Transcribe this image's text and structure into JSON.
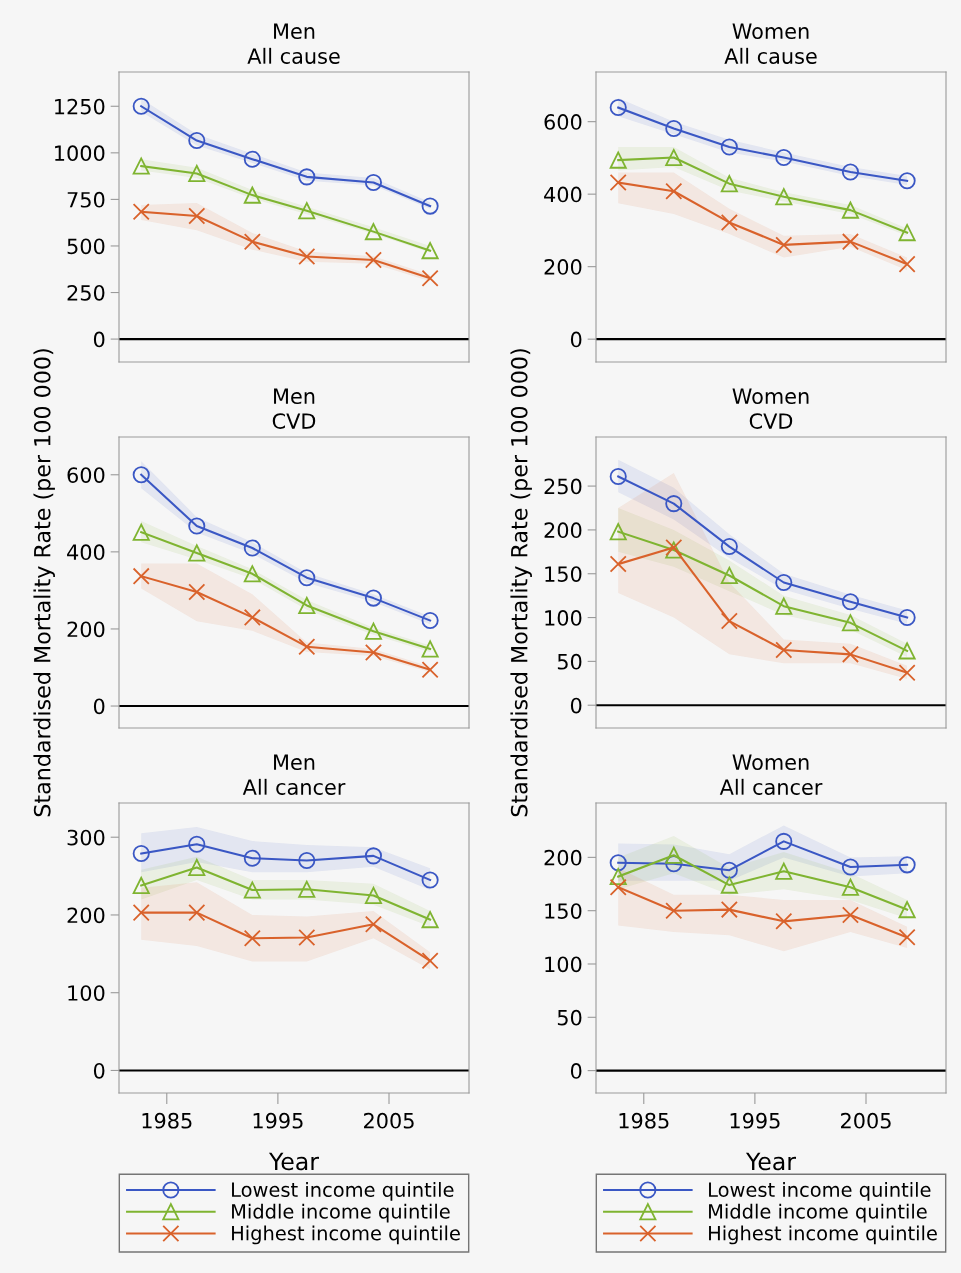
{
  "chart_data": [
    {
      "type": "line",
      "title": "Men\nAll cause",
      "x": [
        1982.7,
        1987.7,
        1992.7,
        1997.6,
        2003.6,
        2008.7
      ],
      "xlim": [
        1980.7,
        2012.2
      ],
      "ylim": [
        -123,
        1434
      ],
      "yticks": [
        0,
        250,
        500,
        750,
        1000,
        1250
      ],
      "tick_labels": "y",
      "grid": false,
      "legend": false,
      "ref_lines": [
        {
          "axis": "y",
          "value": 0,
          "color": "#000000"
        }
      ],
      "series": [
        {
          "color": "#3a57c4",
          "marker": "circle",
          "values": [
            1250,
            1066,
            966,
            871,
            841,
            714
          ],
          "upper": [
            1290,
            1100,
            995,
            895,
            865,
            735
          ],
          "lower": [
            1220,
            1040,
            945,
            850,
            825,
            700
          ]
        },
        {
          "color": "#7fb431",
          "marker": "triangle",
          "values": [
            929,
            889,
            773,
            689,
            577,
            475
          ],
          "upper": [
            965,
            920,
            800,
            710,
            600,
            500
          ],
          "lower": [
            905,
            865,
            755,
            670,
            565,
            465
          ]
        },
        {
          "color": "#d9622b",
          "marker": "cross",
          "values": [
            684,
            661,
            523,
            443,
            425,
            327
          ],
          "upper": [
            720,
            730,
            570,
            470,
            445,
            345
          ],
          "lower": [
            640,
            585,
            480,
            415,
            405,
            310
          ]
        }
      ]
    },
    {
      "type": "line",
      "title": "Women\nAll cause",
      "x": [
        1982.7,
        1987.7,
        1992.7,
        1997.6,
        2003.6,
        2008.7
      ],
      "xlim": [
        1980.7,
        2012.2
      ],
      "ylim": [
        -63,
        737
      ],
      "yticks": [
        0,
        200,
        400,
        600
      ],
      "tick_labels": "y",
      "grid": false,
      "legend": false,
      "ref_lines": [
        {
          "axis": "y",
          "value": 0,
          "color": "#000000"
        }
      ],
      "series": [
        {
          "color": "#3a57c4",
          "marker": "circle",
          "values": [
            639,
            581,
            530,
            501,
            461,
            437
          ],
          "upper": [
            665,
            600,
            550,
            515,
            475,
            450
          ],
          "lower": [
            615,
            565,
            515,
            490,
            450,
            425
          ]
        },
        {
          "color": "#7fb431",
          "marker": "triangle",
          "values": [
            494,
            501,
            429,
            393,
            356,
            294
          ],
          "upper": [
            530,
            530,
            445,
            405,
            370,
            305
          ],
          "lower": [
            465,
            475,
            410,
            380,
            345,
            285
          ]
        },
        {
          "color": "#d9622b",
          "marker": "cross",
          "values": [
            432,
            408,
            322,
            260,
            269,
            207
          ],
          "upper": [
            460,
            460,
            360,
            285,
            290,
            225
          ],
          "lower": [
            375,
            345,
            290,
            225,
            255,
            190
          ]
        }
      ]
    },
    {
      "type": "line",
      "title": "Men\nCVD",
      "ylabel": "Standardised Mortality Rate (per 100 000)",
      "x": [
        1982.7,
        1987.7,
        1992.7,
        1997.6,
        2003.6,
        2008.7
      ],
      "xlim": [
        1980.7,
        2012.2
      ],
      "ylim": [
        -57,
        698
      ],
      "yticks": [
        0,
        200,
        400,
        600
      ],
      "tick_labels": "y",
      "grid": false,
      "legend": false,
      "ref_lines": [
        {
          "axis": "y",
          "value": 0,
          "color": "#000000"
        }
      ],
      "series": [
        {
          "color": "#3a57c4",
          "marker": "circle",
          "values": [
            600,
            467,
            410,
            333,
            280,
            222
          ],
          "upper": [
            635,
            490,
            425,
            345,
            290,
            232
          ],
          "lower": [
            565,
            450,
            395,
            320,
            270,
            212
          ]
        },
        {
          "color": "#7fb431",
          "marker": "triangle",
          "values": [
            451,
            397,
            343,
            261,
            194,
            148
          ],
          "upper": [
            480,
            415,
            355,
            275,
            203,
            157
          ],
          "lower": [
            425,
            380,
            330,
            250,
            185,
            140
          ]
        },
        {
          "color": "#d9622b",
          "marker": "cross",
          "values": [
            337,
            296,
            230,
            154,
            139,
            94
          ],
          "upper": [
            370,
            370,
            290,
            165,
            148,
            102
          ],
          "lower": [
            305,
            220,
            195,
            140,
            130,
            88
          ]
        }
      ]
    },
    {
      "type": "line",
      "title": "Women\nCVD",
      "ylabel": "Standardised Mortality Rate (per 100 000)",
      "x": [
        1982.7,
        1987.7,
        1992.7,
        1997.6,
        2003.6,
        2008.7
      ],
      "xlim": [
        1980.7,
        2012.2
      ],
      "ylim": [
        -26,
        306
      ],
      "yticks": [
        0,
        50,
        100,
        150,
        200,
        250
      ],
      "tick_labels": "y",
      "grid": false,
      "legend": false,
      "ref_lines": [
        {
          "axis": "y",
          "value": 0,
          "color": "#000000"
        }
      ],
      "series": [
        {
          "color": "#3a57c4",
          "marker": "circle",
          "values": [
            261,
            230,
            181,
            140,
            118,
            100
          ],
          "upper": [
            280,
            248,
            195,
            150,
            126,
            108
          ],
          "lower": [
            243,
            212,
            168,
            132,
            110,
            93
          ]
        },
        {
          "color": "#7fb431",
          "marker": "triangle",
          "values": [
            198,
            177,
            148,
            113,
            94,
            62
          ],
          "upper": [
            225,
            200,
            165,
            125,
            103,
            70
          ],
          "lower": [
            175,
            158,
            130,
            103,
            86,
            55
          ]
        },
        {
          "color": "#d9622b",
          "marker": "cross",
          "values": [
            161,
            180,
            96,
            63,
            58,
            37
          ],
          "upper": [
            225,
            265,
            140,
            75,
            70,
            45
          ],
          "lower": [
            128,
            100,
            58,
            48,
            48,
            30
          ]
        }
      ]
    },
    {
      "type": "line",
      "title": "Men\nAll cancer",
      "xlabel": "Year",
      "x": [
        1982.7,
        1987.7,
        1992.7,
        1997.6,
        2003.6,
        2008.7
      ],
      "xlim": [
        1980.7,
        2012.2
      ],
      "xticks": [
        1985,
        1995,
        2005
      ],
      "ylim": [
        -29,
        344
      ],
      "yticks": [
        0,
        100,
        200,
        300
      ],
      "grid": false,
      "legend": "bottom",
      "ref_lines": [
        {
          "axis": "y",
          "value": 0,
          "color": "#000000"
        }
      ],
      "series": [
        {
          "name": "Lowest income quintile",
          "color": "#3a57c4",
          "marker": "circle",
          "values": [
            279,
            291,
            273,
            270,
            276,
            245
          ],
          "upper": [
            305,
            313,
            295,
            290,
            287,
            260
          ],
          "lower": [
            255,
            268,
            255,
            255,
            262,
            232
          ]
        },
        {
          "name": "Middle income quintile",
          "color": "#7fb431",
          "marker": "triangle",
          "values": [
            238,
            261,
            232,
            233,
            225,
            194
          ],
          "upper": [
            258,
            275,
            245,
            245,
            240,
            205
          ],
          "lower": [
            220,
            245,
            220,
            220,
            213,
            185
          ]
        },
        {
          "name": "Highest income quintile",
          "color": "#d9622b",
          "marker": "cross",
          "values": [
            203,
            203,
            170,
            171,
            188,
            141
          ],
          "upper": [
            235,
            242,
            200,
            198,
            205,
            152
          ],
          "lower": [
            168,
            160,
            140,
            140,
            170,
            130
          ]
        }
      ]
    },
    {
      "type": "line",
      "title": "Women\nAll cancer",
      "xlabel": "Year",
      "x": [
        1982.7,
        1987.7,
        1992.7,
        1997.6,
        2003.6,
        2008.7
      ],
      "xlim": [
        1980.7,
        2012.2
      ],
      "xticks": [
        1985,
        1995,
        2005
      ],
      "ylim": [
        -21,
        251
      ],
      "yticks": [
        0,
        50,
        100,
        150,
        200
      ],
      "grid": false,
      "legend": "bottom",
      "ref_lines": [
        {
          "axis": "y",
          "value": 0,
          "color": "#000000"
        }
      ],
      "series": [
        {
          "name": "Lowest income quintile",
          "color": "#3a57c4",
          "marker": "circle",
          "values": [
            195,
            194,
            188,
            215,
            191,
            193
          ],
          "upper": [
            213,
            212,
            203,
            230,
            200,
            201
          ],
          "lower": [
            178,
            178,
            178,
            200,
            182,
            185
          ]
        },
        {
          "name": "Middle income quintile",
          "color": "#7fb431",
          "marker": "triangle",
          "values": [
            182,
            202,
            174,
            187,
            172,
            151
          ],
          "upper": [
            200,
            220,
            190,
            205,
            185,
            160
          ],
          "lower": [
            170,
            185,
            165,
            170,
            160,
            143
          ]
        },
        {
          "name": "Highest income quintile",
          "color": "#d9622b",
          "marker": "cross",
          "values": [
            172,
            150,
            151,
            140,
            146,
            125
          ],
          "upper": [
            190,
            165,
            165,
            160,
            160,
            135
          ],
          "lower": [
            136,
            130,
            127,
            112,
            130,
            115
          ]
        }
      ]
    }
  ]
}
